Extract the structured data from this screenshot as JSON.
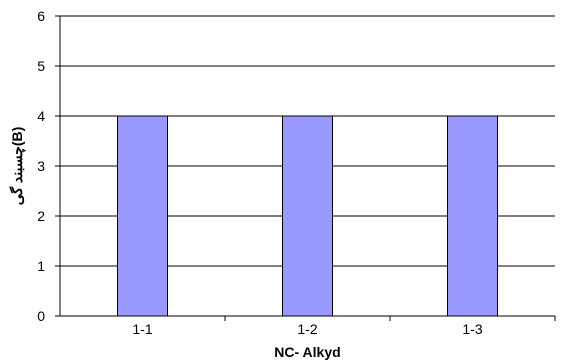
{
  "chart_data": {
    "type": "bar",
    "title": "",
    "xlabel": "NC- Alkyd",
    "ylabel": "چسبند گی(B)",
    "categories": [
      "1-1",
      "1-2",
      "1-3"
    ],
    "values": [
      4,
      4,
      4
    ],
    "ylim": [
      0,
      6
    ],
    "yticks": [
      "0",
      "1",
      "2",
      "3",
      "4",
      "5",
      "6"
    ],
    "grid": true,
    "legend": "none",
    "colors": {
      "bar_fill": "#9999ff",
      "bar_stroke": "#000000",
      "grid": "#000000",
      "axis": "#000000"
    }
  }
}
